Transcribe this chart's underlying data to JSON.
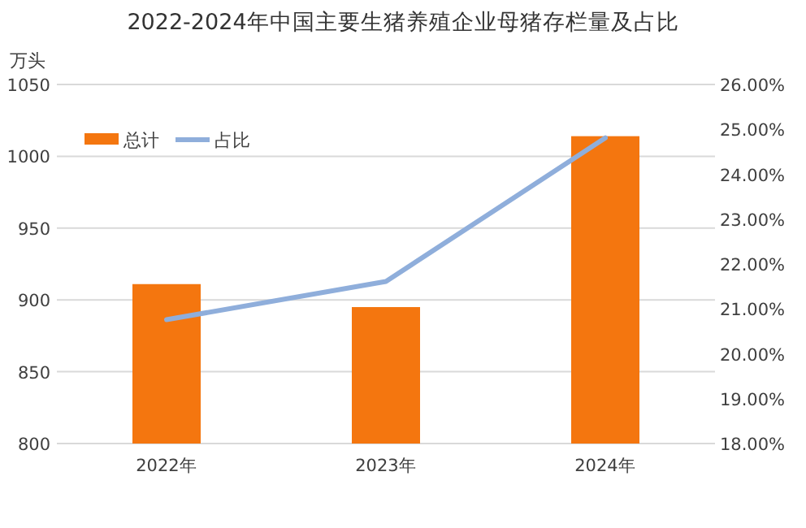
{
  "chart_data": {
    "type": "bar",
    "title": "2022-2024年中国主要生猪养殖企业母猪存栏量及占比",
    "ylabel": "万头",
    "categories": [
      "2022年",
      "2023年",
      "2024年"
    ],
    "series": [
      {
        "name": "总计",
        "color": "#f4760f",
        "values": [
          911,
          895,
          1014
        ]
      },
      {
        "name": "占比",
        "type": "line",
        "color": "#8faedb",
        "axis": "y2",
        "values": [
          20.76,
          21.61,
          24.81
        ]
      }
    ],
    "ylim": [
      800,
      1050
    ],
    "yticks": [
      800,
      850,
      900,
      950,
      1000,
      1050
    ],
    "y2lim": [
      18,
      26
    ],
    "y2ticks": [
      {
        "value": 18,
        "label": "18.00%"
      },
      {
        "value": 19,
        "label": "19.00%"
      },
      {
        "value": 20,
        "label": "20.00%"
      },
      {
        "value": 21,
        "label": "21.00%"
      },
      {
        "value": 22,
        "label": "22.00%"
      },
      {
        "value": 23,
        "label": "23.00%"
      },
      {
        "value": 24,
        "label": "24.00%"
      },
      {
        "value": 25,
        "label": "25.00%"
      },
      {
        "value": 26,
        "label": "26.00%"
      }
    ],
    "grid": "y",
    "legend": "top left"
  }
}
